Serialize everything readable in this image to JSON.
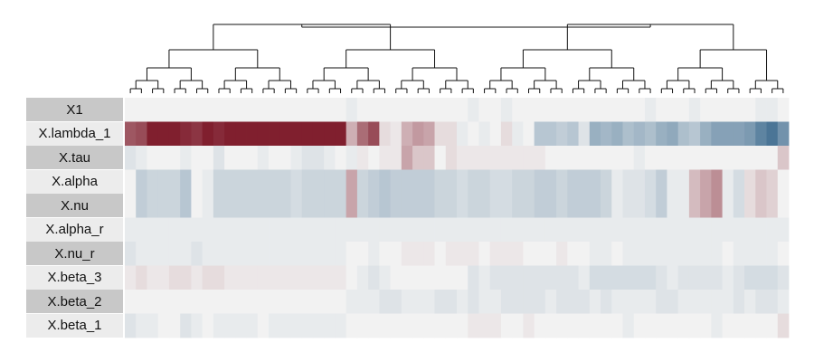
{
  "chart_data": {
    "type": "heatmap",
    "title": "",
    "xlabel": "",
    "ylabel": "",
    "rows": [
      "X1",
      "X.lambda_1",
      "X.tau",
      "X.alpha",
      "X.nu",
      "X.alpha_r",
      "X.nu_r",
      "X.beta_3",
      "X.beta_2",
      "X.beta_1"
    ],
    "n_columns": 60,
    "value_range": [
      -1,
      1
    ],
    "colors": {
      "low": "#2d5f86",
      "mid": "#f2f2f2",
      "high": "#7a1424"
    },
    "column_dendrogram": true,
    "values": [
      [
        0,
        0,
        0,
        0,
        0,
        0,
        0,
        0,
        0,
        0,
        0,
        0,
        0,
        0,
        0,
        0,
        0,
        0,
        0,
        0,
        -0.05,
        0,
        0,
        0,
        0,
        0,
        0,
        0,
        0,
        0,
        0,
        -0.05,
        0,
        0,
        -0.05,
        0,
        0,
        0,
        0,
        0,
        0,
        0,
        0,
        0,
        0,
        0,
        0,
        -0.05,
        0,
        0,
        0,
        -0.05,
        0,
        0,
        0,
        0,
        0,
        -0.05,
        -0.05,
        0
      ],
      [
        0.7,
        0.75,
        0.95,
        0.95,
        0.95,
        0.9,
        0.85,
        0.95,
        0.9,
        0.95,
        0.95,
        0.95,
        0.95,
        0.95,
        0.95,
        0.95,
        0.95,
        0.95,
        0.95,
        0.95,
        0.3,
        0.6,
        0.75,
        0.1,
        0.05,
        0.3,
        0.4,
        0.35,
        0.1,
        0.1,
        -0.05,
        0,
        -0.05,
        0,
        0.1,
        -0.05,
        0,
        -0.3,
        -0.3,
        -0.25,
        -0.3,
        -0.1,
        -0.45,
        -0.4,
        -0.45,
        -0.35,
        -0.4,
        -0.35,
        -0.45,
        -0.5,
        -0.35,
        -0.3,
        -0.45,
        -0.55,
        -0.55,
        -0.55,
        -0.6,
        -0.75,
        -0.85,
        -0.65
      ],
      [
        -0.1,
        -0.05,
        0,
        0,
        0,
        -0.05,
        0,
        0,
        -0.1,
        0,
        0,
        0,
        -0.05,
        0,
        0,
        -0.05,
        -0.1,
        -0.1,
        -0.05,
        0,
        -0.05,
        0.05,
        0,
        0.05,
        0.05,
        0.35,
        0.2,
        0.2,
        0,
        0.1,
        0.05,
        0.05,
        0.05,
        0.05,
        0.05,
        0.05,
        0.05,
        0.05,
        0,
        0,
        0,
        0,
        0,
        0,
        0,
        0,
        -0.05,
        0,
        0,
        0,
        0,
        0,
        0,
        0,
        0,
        0,
        0,
        0,
        0,
        0.2
      ],
      [
        0,
        -0.25,
        -0.2,
        -0.2,
        -0.2,
        -0.3,
        0,
        -0.05,
        -0.2,
        -0.2,
        -0.2,
        -0.2,
        -0.2,
        -0.2,
        -0.2,
        -0.15,
        -0.2,
        -0.2,
        -0.2,
        -0.2,
        0.35,
        -0.2,
        -0.25,
        -0.3,
        -0.25,
        -0.25,
        -0.25,
        -0.25,
        -0.2,
        -0.2,
        -0.15,
        -0.2,
        -0.2,
        -0.15,
        -0.15,
        -0.2,
        -0.2,
        -0.25,
        -0.25,
        -0.2,
        -0.25,
        -0.25,
        -0.25,
        -0.2,
        -0.05,
        -0.1,
        -0.1,
        -0.15,
        -0.25,
        -0.05,
        -0.05,
        0.25,
        0.35,
        0.45,
        -0.05,
        -0.15,
        0.1,
        0.2,
        0.15,
        0
      ],
      [
        0,
        -0.25,
        -0.2,
        -0.2,
        -0.2,
        -0.3,
        0,
        -0.05,
        -0.2,
        -0.2,
        -0.2,
        -0.2,
        -0.2,
        -0.2,
        -0.2,
        -0.15,
        -0.2,
        -0.2,
        -0.2,
        -0.2,
        0.35,
        -0.2,
        -0.25,
        -0.3,
        -0.25,
        -0.25,
        -0.25,
        -0.25,
        -0.2,
        -0.2,
        -0.15,
        -0.2,
        -0.2,
        -0.15,
        -0.15,
        -0.2,
        -0.2,
        -0.25,
        -0.25,
        -0.2,
        -0.25,
        -0.25,
        -0.25,
        -0.2,
        -0.05,
        -0.1,
        -0.1,
        -0.15,
        -0.25,
        -0.05,
        -0.05,
        0.25,
        0.35,
        0.45,
        -0.05,
        -0.15,
        0.1,
        0.2,
        0.15,
        0
      ],
      [
        -0.05,
        -0.05,
        -0.05,
        -0.05,
        -0.05,
        -0.05,
        -0.05,
        -0.05,
        -0.05,
        -0.05,
        -0.05,
        -0.05,
        -0.05,
        -0.05,
        -0.05,
        -0.05,
        -0.05,
        -0.05,
        -0.05,
        -0.05,
        -0.05,
        -0.05,
        -0.05,
        -0.05,
        -0.05,
        -0.05,
        -0.05,
        -0.05,
        -0.05,
        -0.05,
        -0.05,
        -0.05,
        -0.05,
        -0.05,
        -0.05,
        -0.05,
        -0.05,
        -0.05,
        -0.05,
        -0.05,
        -0.05,
        -0.05,
        -0.05,
        -0.05,
        -0.05,
        -0.05,
        -0.05,
        -0.05,
        -0.05,
        -0.05,
        -0.05,
        -0.05,
        -0.05,
        -0.05,
        -0.05,
        -0.05,
        -0.05,
        -0.05,
        -0.05,
        -0.05
      ],
      [
        -0.1,
        -0.05,
        -0.05,
        -0.05,
        -0.05,
        -0.05,
        -0.1,
        -0.05,
        -0.05,
        -0.05,
        -0.05,
        -0.05,
        -0.05,
        -0.05,
        -0.05,
        -0.05,
        -0.05,
        -0.05,
        -0.05,
        -0.05,
        0,
        0,
        -0.05,
        0,
        0,
        0.05,
        0.05,
        0.05,
        0,
        0.05,
        0.05,
        0.05,
        0,
        0.05,
        0.05,
        0.05,
        0,
        0,
        0,
        0.05,
        0,
        0,
        -0.05,
        -0.05,
        0,
        -0.05,
        -0.05,
        -0.05,
        -0.05,
        -0.05,
        -0.05,
        -0.05,
        -0.05,
        -0.05,
        0,
        -0.05,
        -0.05,
        -0.05,
        -0.05,
        0
      ],
      [
        0.05,
        0.1,
        0.05,
        0.05,
        0.1,
        0.1,
        0.05,
        0.1,
        0.1,
        0.05,
        0.05,
        0.05,
        0.05,
        0.05,
        0.05,
        0.05,
        0.05,
        0.05,
        0.05,
        0.05,
        0,
        -0.05,
        -0.1,
        -0.05,
        0,
        0,
        0,
        0,
        0,
        0,
        0,
        -0.1,
        -0.05,
        -0.1,
        -0.1,
        -0.1,
        -0.1,
        -0.1,
        -0.1,
        -0.1,
        -0.1,
        -0.05,
        -0.15,
        -0.15,
        -0.15,
        -0.15,
        -0.15,
        -0.15,
        -0.1,
        -0.05,
        -0.1,
        -0.1,
        -0.1,
        -0.1,
        -0.05,
        -0.1,
        -0.15,
        -0.15,
        -0.15,
        -0.1
      ],
      [
        0,
        0,
        0,
        0,
        0,
        0,
        0,
        0,
        0,
        0,
        0,
        0,
        0,
        0,
        0,
        0,
        0,
        0,
        0,
        0,
        -0.05,
        -0.05,
        -0.05,
        -0.1,
        -0.1,
        -0.05,
        -0.05,
        -0.05,
        -0.1,
        -0.1,
        -0.05,
        -0.1,
        -0.05,
        -0.05,
        -0.1,
        -0.1,
        -0.1,
        -0.1,
        -0.05,
        -0.1,
        -0.1,
        -0.1,
        -0.05,
        -0.1,
        -0.05,
        -0.05,
        -0.05,
        -0.05,
        -0.1,
        -0.1,
        -0.05,
        -0.05,
        -0.05,
        -0.05,
        -0.05,
        -0.1,
        -0.05,
        -0.1,
        -0.1,
        -0.05
      ],
      [
        -0.1,
        -0.05,
        -0.05,
        0,
        0,
        -0.1,
        -0.05,
        0,
        -0.05,
        -0.05,
        -0.05,
        -0.05,
        0,
        -0.05,
        -0.05,
        -0.05,
        -0.05,
        -0.05,
        -0.05,
        -0.05,
        0,
        0,
        0,
        0,
        0,
        0,
        0,
        0,
        0,
        0,
        0,
        0.05,
        0.05,
        0.05,
        0,
        0,
        0.05,
        0,
        0,
        0,
        0,
        0,
        0,
        0,
        0,
        -0.05,
        0,
        0,
        0,
        0,
        0,
        0,
        0,
        -0.05,
        0,
        0,
        0,
        0,
        0,
        0.1
      ]
    ]
  }
}
